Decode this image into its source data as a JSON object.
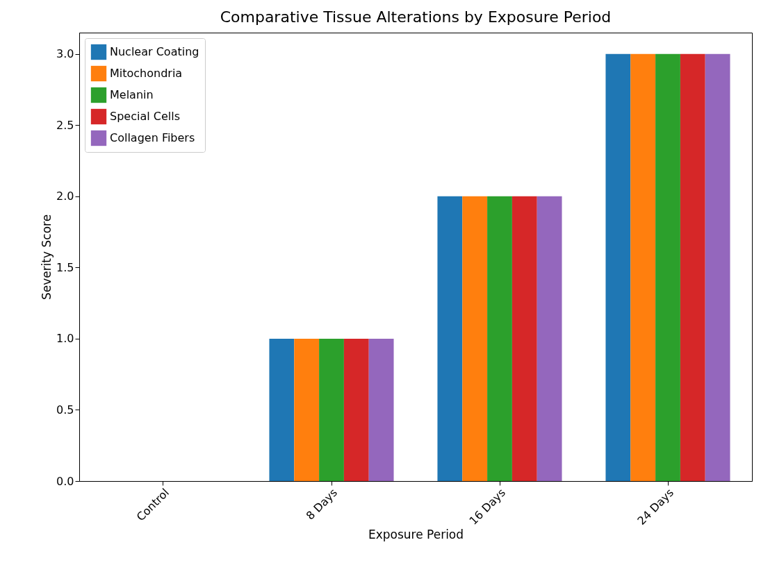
{
  "chart_data": {
    "type": "bar",
    "title": "Comparative Tissue Alterations by Exposure Period",
    "xlabel": "Exposure Period",
    "ylabel": "Severity Score",
    "categories": [
      "Control",
      "8 Days",
      "16 Days",
      "24 Days"
    ],
    "series": [
      {
        "name": "Nuclear Coating",
        "color": "#1f77b4",
        "values": [
          0,
          1,
          2,
          3
        ]
      },
      {
        "name": "Mitochondria",
        "color": "#ff7f0e",
        "values": [
          0,
          1,
          2,
          3
        ]
      },
      {
        "name": "Melanin",
        "color": "#2ca02c",
        "values": [
          0,
          1,
          2,
          3
        ]
      },
      {
        "name": "Special Cells",
        "color": "#d62728",
        "values": [
          0,
          1,
          2,
          3
        ]
      },
      {
        "name": "Collagen Fibers",
        "color": "#9467bd",
        "values": [
          0,
          1,
          2,
          3
        ]
      }
    ],
    "ylim": [
      0,
      3.15
    ],
    "yticks": [
      {
        "value": 0,
        "label": "0.0"
      },
      0.5,
      {
        "value": 1,
        "label": "1.0"
      },
      1.5,
      {
        "value": 2,
        "label": "2.0"
      },
      2.5,
      {
        "value": 3,
        "label": "3.0"
      }
    ],
    "grid": false,
    "legend": "top left"
  }
}
